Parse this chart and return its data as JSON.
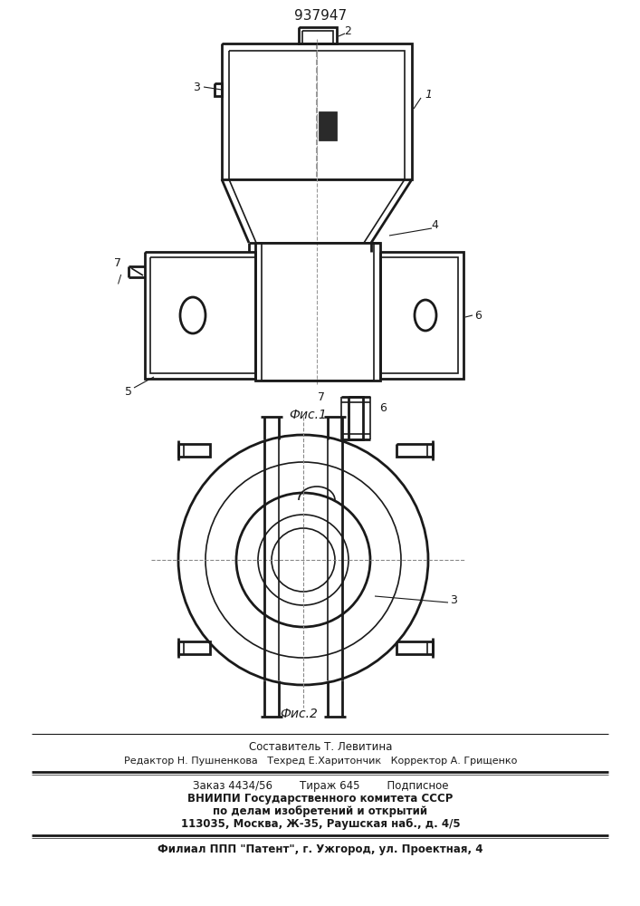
{
  "patent_number": "937947",
  "fig1_caption": "Фис.1",
  "fig2_caption": "Фис.2",
  "bg_color": "#ffffff",
  "line_color": "#1a1a1a",
  "footer_lines": [
    "Составитель Т. Левитина",
    "Редактор Н. Пушненкова   Техред Е.Харитончик   Корректор А. Грищенко",
    "Заказ 4434/56        Тираж 645        Подписное",
    "ВНИИПИ Государственного комитета СССР",
    "по делам изобретений и открытий",
    "113035, Москва, Ж-35, Раушская наб., д. 4/5",
    "Филиал ППП \"Патент\", г. Ужгород, ул. Проектная, 4"
  ],
  "lw": 1.2,
  "lw2": 2.0
}
